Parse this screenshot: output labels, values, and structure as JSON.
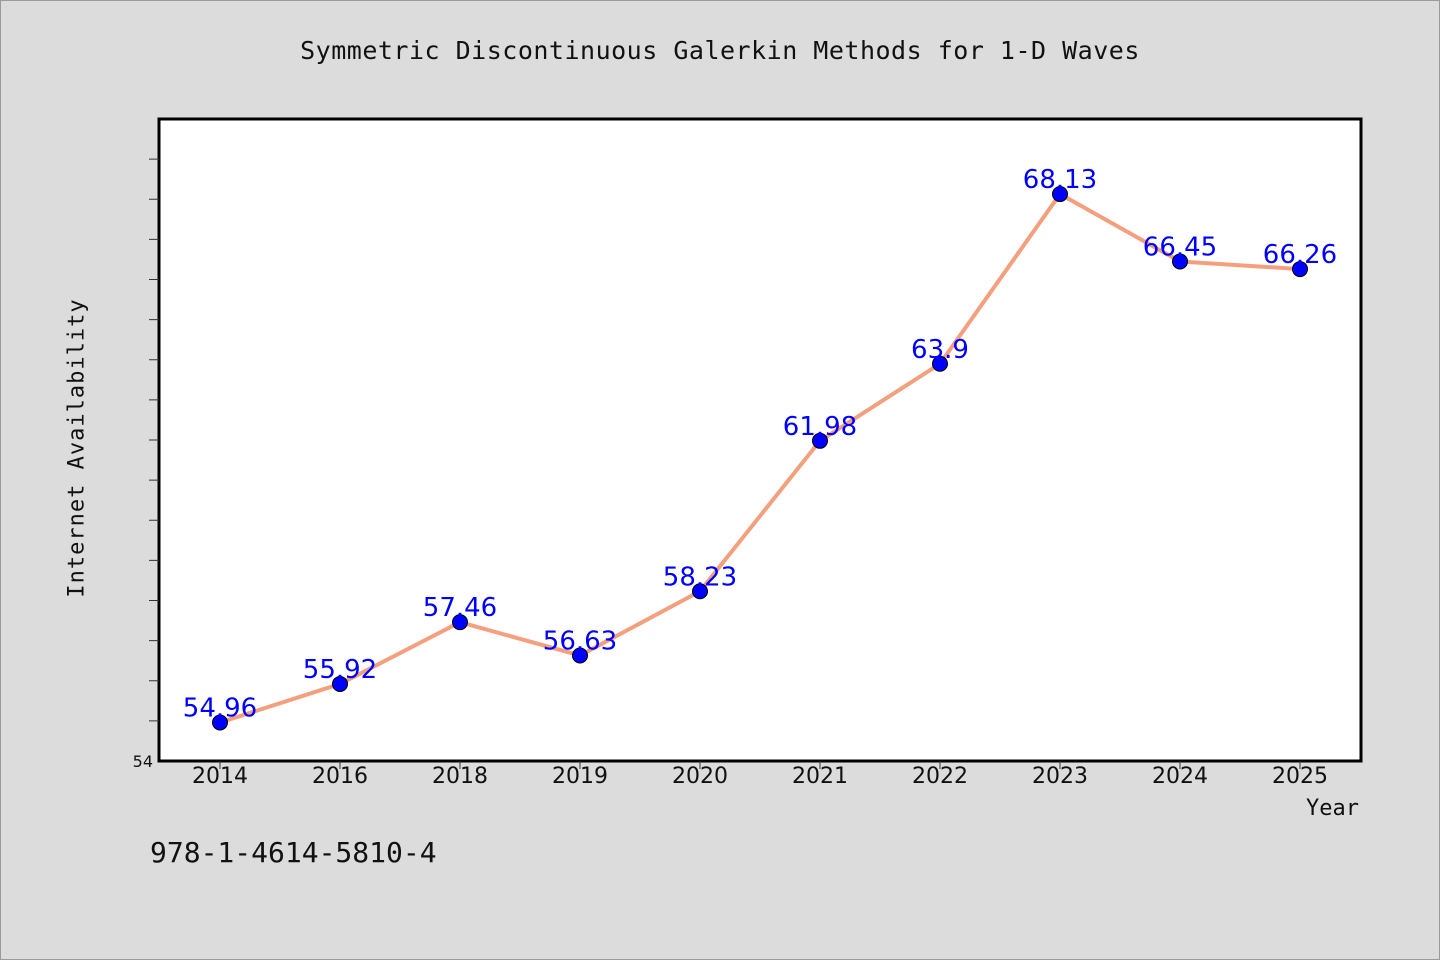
{
  "title": "Symmetric Discontinuous Galerkin Methods for 1-D Waves",
  "footer_text": "978-1-4614-5810-4",
  "colors": {
    "background": "#dcdcdc",
    "plot_area": "#ffffff",
    "line": "#f4a07e",
    "marker": "#0000ff",
    "data_label": "#0000ff"
  },
  "chart_data": {
    "type": "line",
    "xlabel": "Year",
    "ylabel": "Internet Availability",
    "categories": [
      "2014",
      "2016",
      "2018",
      "2019",
      "2020",
      "2021",
      "2022",
      "2023",
      "2024",
      "2025"
    ],
    "series": [
      {
        "values": [
          54.96,
          55.92,
          57.46,
          56.63,
          58.23,
          61.98,
          63.9,
          68.13,
          66.45,
          66.26
        ],
        "labels": [
          "54.96",
          "55.92",
          "57.46",
          "56.63",
          "58.23",
          "61.98",
          "63.9",
          "68.13",
          "66.45",
          "66.26"
        ]
      }
    ],
    "ylim": [
      54,
      70
    ],
    "y_tick_labels": [
      "54"
    ],
    "y_minor_ticks": [
      55,
      56,
      57,
      58,
      59,
      60,
      61,
      62,
      63,
      64,
      65,
      66,
      67,
      68,
      69
    ],
    "grid": false,
    "legend": "none"
  }
}
